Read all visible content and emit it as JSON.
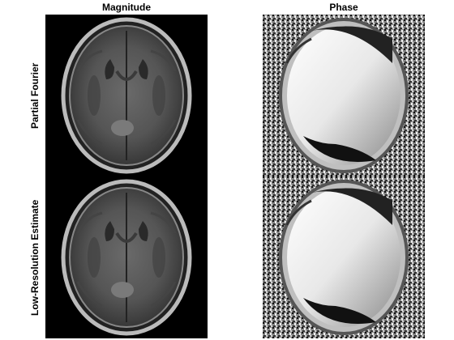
{
  "figure": {
    "columns": [
      {
        "title": "Magnitude"
      },
      {
        "title": "Phase"
      }
    ],
    "rows": [
      {
        "label": "Partial Fourier"
      },
      {
        "label": "Low-Resolution Estimate"
      }
    ],
    "panels": [
      {
        "row": "Partial Fourier",
        "column": "Magnitude",
        "content": "axial-brain-mri-magnitude"
      },
      {
        "row": "Partial Fourier",
        "column": "Phase",
        "content": "axial-brain-mri-phase"
      },
      {
        "row": "Low-Resolution Estimate",
        "column": "Magnitude",
        "content": "axial-brain-mri-magnitude"
      },
      {
        "row": "Low-Resolution Estimate",
        "column": "Phase",
        "content": "axial-brain-mri-phase"
      }
    ],
    "colors": {
      "background": "#000000",
      "tissue": "#4a4a4a",
      "skull": "#c8c8c8",
      "phase_light": "#f0f0f0",
      "phase_dark": "#101010"
    }
  }
}
